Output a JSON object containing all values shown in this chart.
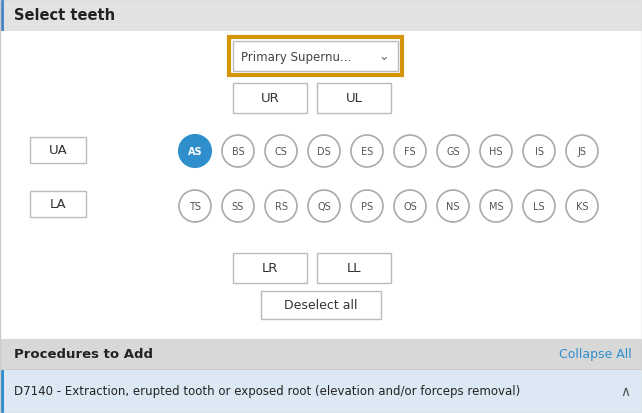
{
  "title": "Select teeth",
  "main_bg": "#ffffff",
  "header_bg": "#e2e2e2",
  "header_left_bar_color": "#4a86c8",
  "header_text_color": "#222222",
  "dropdown_text": "Primary Supernu...",
  "dropdown_chevron": "⌄",
  "dropdown_border_color": "#d4950a",
  "dropdown_bg": "#ffffff",
  "dropdown_inner_border": "#bbbbbb",
  "quad_buttons": [
    "UR",
    "UL",
    "LR",
    "LL"
  ],
  "side_buttons": [
    "UA",
    "LA"
  ],
  "upper_teeth": [
    "AS",
    "BS",
    "CS",
    "DS",
    "ES",
    "FS",
    "GS",
    "HS",
    "IS",
    "JS"
  ],
  "lower_teeth": [
    "TS",
    "SS",
    "RS",
    "QS",
    "PS",
    "OS",
    "NS",
    "MS",
    "LS",
    "KS"
  ],
  "selected_tooth": "AS",
  "selected_color": "#2e8fcc",
  "selected_text_color": "#ffffff",
  "tooth_circle_bg": "#ffffff",
  "tooth_circle_border": "#aaaaaa",
  "tooth_text_color": "#555555",
  "deselect_label": "Deselect all",
  "procedures_header": "Procedures to Add",
  "procedures_link": "Collapse All",
  "procedures_link_color": "#2e8fcc",
  "procedure_item": "D7140 - Extraction, erupted tooth or exposed root (elevation and/or forceps removal)",
  "procedure_item_bg": "#dce9f5",
  "procedure_left_bar": "#2e8fcc",
  "bottom_arrow": "∧",
  "procedures_bar_bg": "#d8d8d8",
  "fig_width": 6.42,
  "fig_height": 4.14,
  "dpi": 100
}
